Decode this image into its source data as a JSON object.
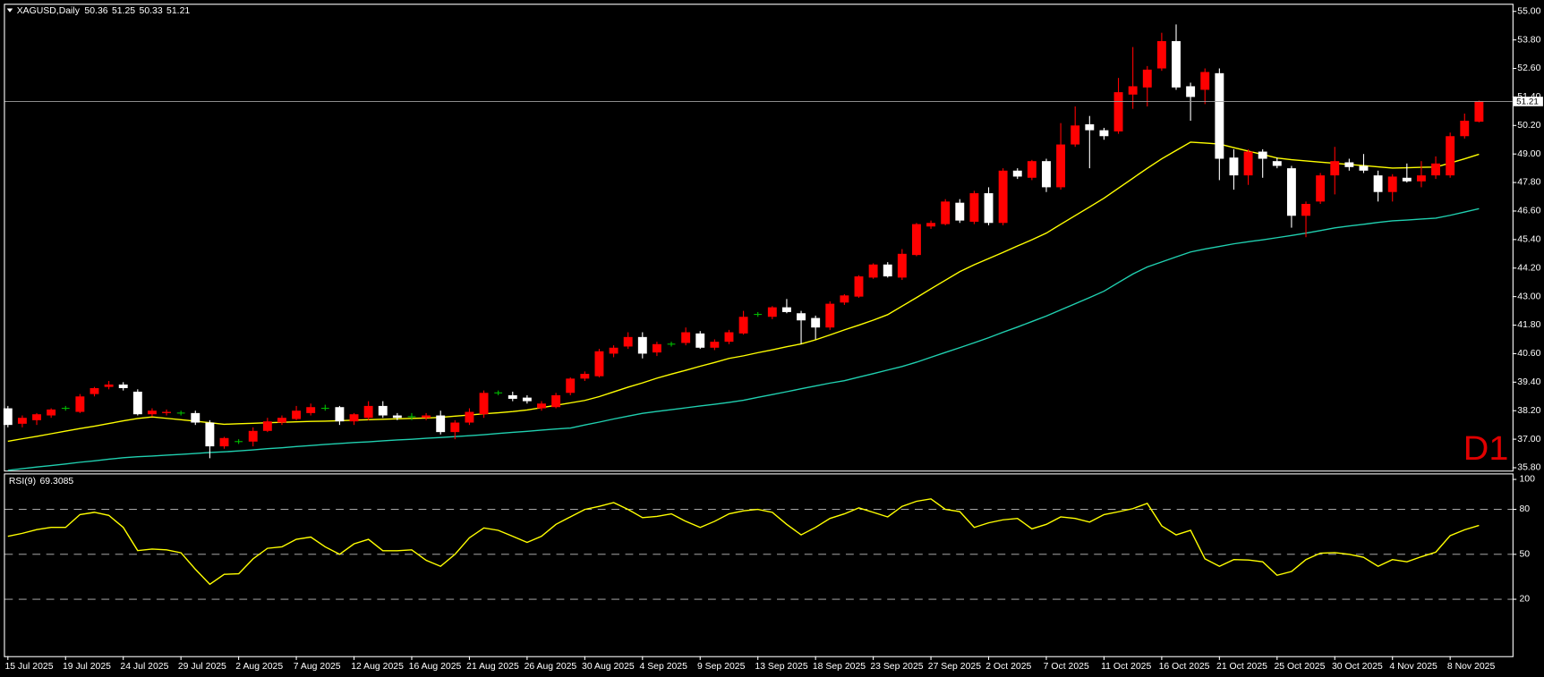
{
  "chart_data": [
    {
      "type": "candlestick",
      "title": "XAGUSD,Daily",
      "timeframe_label": "D1",
      "categories": [
        "15 Jul 2025",
        null,
        null,
        null,
        "19 Jul 2025",
        null,
        null,
        null,
        "24 Jul 2025",
        null,
        null,
        null,
        "29 Jul 2025",
        null,
        null,
        null,
        "2 Aug 2025",
        null,
        null,
        null,
        "7 Aug 2025",
        null,
        null,
        null,
        "12 Aug 2025",
        null,
        null,
        null,
        "16 Aug 2025",
        null,
        null,
        null,
        "21 Aug 2025",
        null,
        null,
        null,
        "26 Aug 2025",
        null,
        null,
        null,
        "30 Aug 2025",
        null,
        null,
        null,
        "4 Sep 2025",
        null,
        null,
        null,
        "9 Sep 2025",
        null,
        null,
        null,
        "13 Sep 2025",
        null,
        null,
        null,
        "18 Sep 2025",
        null,
        null,
        null,
        "23 Sep 2025",
        null,
        null,
        null,
        "27 Sep 2025",
        null,
        null,
        null,
        "2 Oct 2025",
        null,
        null,
        null,
        "7 Oct 2025",
        null,
        null,
        null,
        "11 Oct 2025",
        null,
        null,
        null,
        "16 Oct 2025",
        null,
        null,
        null,
        "21 Oct 2025",
        null,
        null,
        null,
        "25 Oct 2025",
        null,
        null,
        null,
        "30 Oct 2025",
        null,
        null,
        null,
        "4 Nov 2025",
        null,
        null,
        null,
        "8 Nov 2025",
        null,
        null
      ],
      "open": [
        38.3,
        37.65,
        37.8,
        38.0,
        38.3,
        38.15,
        38.9,
        39.2,
        39.3,
        39.0,
        38.05,
        38.1,
        38.1,
        38.1,
        37.7,
        36.7,
        36.9,
        36.9,
        37.35,
        37.7,
        37.85,
        38.1,
        38.3,
        38.35,
        37.75,
        37.9,
        38.4,
        38.0,
        37.95,
        37.9,
        38.0,
        37.3,
        37.7,
        38.05,
        38.95,
        38.85,
        38.75,
        38.3,
        38.35,
        38.95,
        39.55,
        39.65,
        40.6,
        40.9,
        41.3,
        40.65,
        41.0,
        41.05,
        41.45,
        40.85,
        41.1,
        41.45,
        42.25,
        42.15,
        42.55,
        42.3,
        42.1,
        41.7,
        42.75,
        43.0,
        43.8,
        44.35,
        43.8,
        44.75,
        45.95,
        46.05,
        46.95,
        46.15,
        47.35,
        46.1,
        48.3,
        48.0,
        48.7,
        47.6,
        49.4,
        50.25,
        50.0,
        49.95,
        51.5,
        51.8,
        52.6,
        53.75,
        51.85,
        51.7,
        52.4,
        48.85,
        48.1,
        49.1,
        48.7,
        48.4,
        46.4,
        47.0,
        48.1,
        48.65,
        48.5,
        48.1,
        47.4,
        48.0,
        47.85,
        48.1,
        48.1,
        49.75,
        50.36
      ],
      "high": [
        38.4,
        38.0,
        38.1,
        38.3,
        38.4,
        38.9,
        39.2,
        39.45,
        39.4,
        39.1,
        38.3,
        38.25,
        38.2,
        38.2,
        37.8,
        37.1,
        37.0,
        37.5,
        37.9,
        38.0,
        38.4,
        38.5,
        38.45,
        38.4,
        38.1,
        38.6,
        38.6,
        38.1,
        38.1,
        38.1,
        38.2,
        37.8,
        38.3,
        39.05,
        39.05,
        39.0,
        38.85,
        38.6,
        38.95,
        39.6,
        39.85,
        40.8,
        40.95,
        41.5,
        41.5,
        41.1,
        41.1,
        41.7,
        41.55,
        41.2,
        41.6,
        42.4,
        42.35,
        42.6,
        42.9,
        42.4,
        42.2,
        42.8,
        43.1,
        43.9,
        44.4,
        44.45,
        45.0,
        46.1,
        46.2,
        47.1,
        47.1,
        47.45,
        47.6,
        48.4,
        48.4,
        48.75,
        48.8,
        50.3,
        51.0,
        50.6,
        50.1,
        52.2,
        53.5,
        52.7,
        54.1,
        54.45,
        52.0,
        52.6,
        52.6,
        49.2,
        49.2,
        49.2,
        48.85,
        48.5,
        47.0,
        48.2,
        49.3,
        48.8,
        49.0,
        48.3,
        48.15,
        48.6,
        48.7,
        48.9,
        49.9,
        50.7,
        51.25
      ],
      "low": [
        37.5,
        37.5,
        37.6,
        37.9,
        38.2,
        38.1,
        38.8,
        39.1,
        39.05,
        38.0,
        37.95,
        38.0,
        38.0,
        37.6,
        36.2,
        36.6,
        36.8,
        36.7,
        37.3,
        37.6,
        37.8,
        38.0,
        38.2,
        37.6,
        37.6,
        37.8,
        37.9,
        37.8,
        37.8,
        37.8,
        37.2,
        37.0,
        37.6,
        37.9,
        38.85,
        38.6,
        38.5,
        38.2,
        38.3,
        38.85,
        39.45,
        39.6,
        40.45,
        40.8,
        40.4,
        40.5,
        40.9,
        40.95,
        40.8,
        40.75,
        41.0,
        41.4,
        42.15,
        42.05,
        42.3,
        41.0,
        41.2,
        41.6,
        42.65,
        42.95,
        43.75,
        43.8,
        43.7,
        44.7,
        45.85,
        46.0,
        46.1,
        46.05,
        46.0,
        46.0,
        47.95,
        47.9,
        47.4,
        47.5,
        49.3,
        48.4,
        49.6,
        49.85,
        50.9,
        51.0,
        52.5,
        51.7,
        50.4,
        51.1,
        47.9,
        47.5,
        47.7,
        48.0,
        48.4,
        45.9,
        45.5,
        46.9,
        47.3,
        48.3,
        48.2,
        47.0,
        47.0,
        47.8,
        47.6,
        47.95,
        48.0,
        49.65,
        50.33
      ],
      "close": [
        37.6,
        37.9,
        38.05,
        38.25,
        38.3,
        38.8,
        39.15,
        39.3,
        39.15,
        38.05,
        38.2,
        38.15,
        38.1,
        37.7,
        36.7,
        37.05,
        36.9,
        37.35,
        37.75,
        37.9,
        38.2,
        38.35,
        38.3,
        37.75,
        38.05,
        38.4,
        38.0,
        37.9,
        37.95,
        38.0,
        37.3,
        37.7,
        38.15,
        38.95,
        38.95,
        38.7,
        38.6,
        38.5,
        38.85,
        39.55,
        39.75,
        40.7,
        40.85,
        41.3,
        40.6,
        41.0,
        41.0,
        41.5,
        40.85,
        41.1,
        41.5,
        42.15,
        42.25,
        42.55,
        42.35,
        42.0,
        41.7,
        42.7,
        43.05,
        43.85,
        44.35,
        43.85,
        44.8,
        46.05,
        46.1,
        47.0,
        46.2,
        47.35,
        46.1,
        48.3,
        48.05,
        48.7,
        47.6,
        49.4,
        50.2,
        50.0,
        49.75,
        51.6,
        51.85,
        52.55,
        53.75,
        51.8,
        51.4,
        52.45,
        48.8,
        48.1,
        49.1,
        48.8,
        48.5,
        46.4,
        46.9,
        48.1,
        48.7,
        48.45,
        48.3,
        47.4,
        48.05,
        47.85,
        48.1,
        48.6,
        49.75,
        50.4,
        51.21
      ],
      "up_color": "#ff0000",
      "down_color": "#ffffff",
      "doji_color": "#00c000",
      "series": [
        {
          "color": "#ffff00",
          "values": [
            36.91,
            37.02,
            37.12,
            37.23,
            37.34,
            37.45,
            37.55,
            37.66,
            37.77,
            37.87,
            37.94,
            37.88,
            37.82,
            37.76,
            37.69,
            37.63,
            37.65,
            37.67,
            37.69,
            37.71,
            37.73,
            37.75,
            37.76,
            37.78,
            37.8,
            37.82,
            37.84,
            37.86,
            37.88,
            37.89,
            37.92,
            37.97,
            38.02,
            38.07,
            38.11,
            38.16,
            38.23,
            38.33,
            38.43,
            38.53,
            38.63,
            38.79,
            38.99,
            39.19,
            39.37,
            39.57,
            39.74,
            39.9,
            40.07,
            40.23,
            40.4,
            40.51,
            40.64,
            40.76,
            40.89,
            41.01,
            41.18,
            41.39,
            41.6,
            41.8,
            42.01,
            42.24,
            42.6,
            42.96,
            43.33,
            43.69,
            44.05,
            44.34,
            44.6,
            44.86,
            45.13,
            45.39,
            45.67,
            46.04,
            46.41,
            46.77,
            47.14,
            47.56,
            47.98,
            48.4,
            48.8,
            49.15,
            49.5,
            49.46,
            49.42,
            49.27,
            49.12,
            48.98,
            48.83,
            48.76,
            48.71,
            48.66,
            48.61,
            48.56,
            48.51,
            48.46,
            48.41,
            48.42,
            48.44,
            48.45,
            48.62,
            48.8,
            48.99
          ]
        },
        {
          "color": "#20d0b0",
          "values": [
            35.69,
            35.76,
            35.83,
            35.89,
            35.96,
            36.03,
            36.09,
            36.16,
            36.22,
            36.26,
            36.29,
            36.33,
            36.36,
            36.4,
            36.44,
            36.47,
            36.51,
            36.55,
            36.6,
            36.64,
            36.69,
            36.73,
            36.78,
            36.82,
            36.86,
            36.89,
            36.93,
            36.97,
            37.0,
            37.04,
            37.07,
            37.11,
            37.15,
            37.19,
            37.24,
            37.29,
            37.33,
            37.38,
            37.43,
            37.47,
            37.6,
            37.72,
            37.85,
            37.97,
            38.09,
            38.17,
            38.24,
            38.32,
            38.4,
            38.47,
            38.55,
            38.64,
            38.76,
            38.88,
            39.0,
            39.12,
            39.24,
            39.36,
            39.46,
            39.61,
            39.76,
            39.91,
            40.06,
            40.24,
            40.45,
            40.65,
            40.85,
            41.06,
            41.27,
            41.5,
            41.72,
            41.95,
            42.18,
            42.44,
            42.7,
            42.96,
            43.23,
            43.59,
            43.95,
            44.25,
            44.46,
            44.67,
            44.88,
            45.0,
            45.11,
            45.22,
            45.31,
            45.39,
            45.48,
            45.57,
            45.67,
            45.78,
            45.89,
            45.97,
            46.04,
            46.12,
            46.19,
            46.22,
            46.26,
            46.3,
            46.42,
            46.56,
            46.7
          ]
        }
      ],
      "ylim": [
        35.68,
        55.28
      ],
      "yticks": [
        {
          "value": 55,
          "label": "55.00"
        },
        {
          "value": 53.8,
          "label": "53.80"
        },
        {
          "value": 52.6,
          "label": "52.60"
        },
        {
          "value": 51.4,
          "label": "51.40"
        },
        {
          "value": 50.2,
          "label": "50.20"
        },
        {
          "value": 49,
          "label": "49.00"
        },
        {
          "value": 47.8,
          "label": "47.80"
        },
        {
          "value": 46.6,
          "label": "46.60"
        },
        {
          "value": 45.4,
          "label": "45.40"
        },
        {
          "value": 44.2,
          "label": "44.20"
        },
        {
          "value": 43,
          "label": "43.00"
        },
        {
          "value": 41.8,
          "label": "41.80"
        },
        {
          "value": 40.6,
          "label": "40.60"
        },
        {
          "value": 39.4,
          "label": "39.40"
        },
        {
          "value": 38.2,
          "label": "38.20"
        },
        {
          "value": 37,
          "label": "37.00"
        },
        {
          "value": 35.8,
          "label": "35.80"
        }
      ],
      "grid": false
    },
    {
      "type": "line",
      "title": "RSI(9)",
      "color": "#ffff00",
      "values": [
        62,
        64,
        66.5,
        68,
        68,
        76.5,
        78,
        76,
        68,
        52.5,
        53.5,
        53,
        51,
        40,
        30,
        36.6,
        37,
        47,
        54,
        55,
        60,
        61.5,
        55,
        50,
        57,
        60,
        52.4,
        52.4,
        53,
        46,
        42,
        50,
        61,
        67.6,
        66,
        62,
        58,
        62,
        70,
        75,
        80,
        82,
        84.5,
        80,
        74.5,
        75.3,
        77,
        72,
        68,
        72,
        77,
        79,
        80,
        78,
        70,
        63,
        68,
        74,
        77,
        81,
        78,
        75,
        82,
        85.4,
        87,
        80,
        78.5,
        68,
        71,
        73,
        74,
        67,
        70,
        75,
        74,
        71.5,
        76.5,
        78.4,
        80.5,
        84,
        69,
        63,
        66,
        47,
        42,
        46.5,
        46.2,
        45,
        36,
        38.5,
        46.5,
        50.8,
        51.1,
        50,
        48,
        42,
        46.5,
        45,
        48.4,
        51.5,
        62.5,
        66.4,
        69.3085
      ],
      "ylim": [
        -18,
        104
      ],
      "yticks": [
        100,
        80,
        50,
        20
      ],
      "levels": [
        80,
        50,
        20
      ],
      "grid": false
    }
  ]
}
